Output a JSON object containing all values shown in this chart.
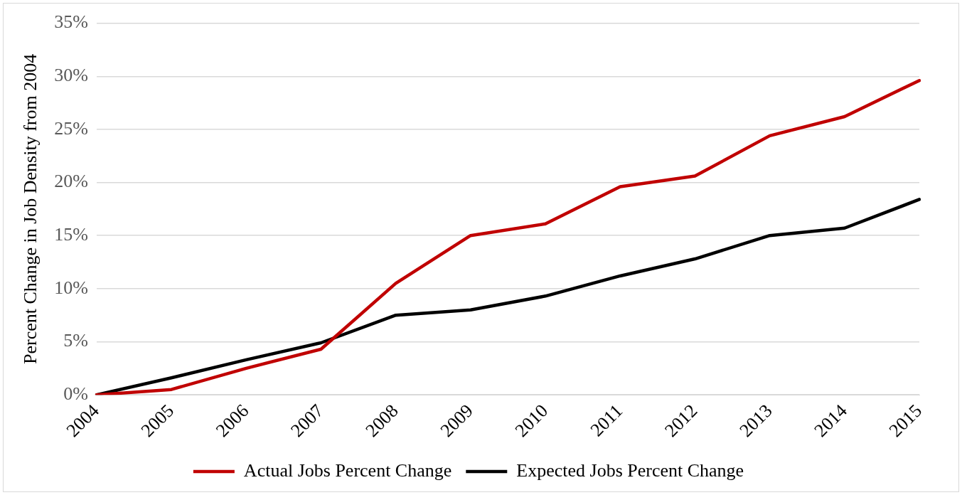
{
  "chart_data": {
    "type": "line",
    "ylabel": "Percent Change in Job Density from 2004",
    "categories": [
      "2004",
      "2005",
      "2006",
      "2007",
      "2008",
      "2009",
      "2010",
      "2011",
      "2012",
      "2013",
      "2014",
      "2015"
    ],
    "series": [
      {
        "name": "Actual Jobs Percent Change",
        "color": "#c00000",
        "values": [
          0,
          0.5,
          2.5,
          4.3,
          10.5,
          15.0,
          16.1,
          19.6,
          20.6,
          24.4,
          26.2,
          29.6
        ]
      },
      {
        "name": "Expected Jobs Percent Change",
        "color": "#000000",
        "values": [
          0,
          1.6,
          3.3,
          4.9,
          7.5,
          8.0,
          9.3,
          11.2,
          12.8,
          15.0,
          15.7,
          18.4
        ]
      }
    ],
    "ylim": [
      0,
      35
    ],
    "yticks": [
      {
        "value": 0,
        "label": "0%"
      },
      {
        "value": 5,
        "label": "5%"
      },
      {
        "value": 10,
        "label": "10%"
      },
      {
        "value": 15,
        "label": "15%"
      },
      {
        "value": 20,
        "label": "20%"
      },
      {
        "value": 25,
        "label": "25%"
      },
      {
        "value": 30,
        "label": "30%"
      },
      {
        "value": 35,
        "label": "35%"
      }
    ],
    "grid": "y",
    "legend": "bottom",
    "marker": "none",
    "line_style": "solid"
  }
}
